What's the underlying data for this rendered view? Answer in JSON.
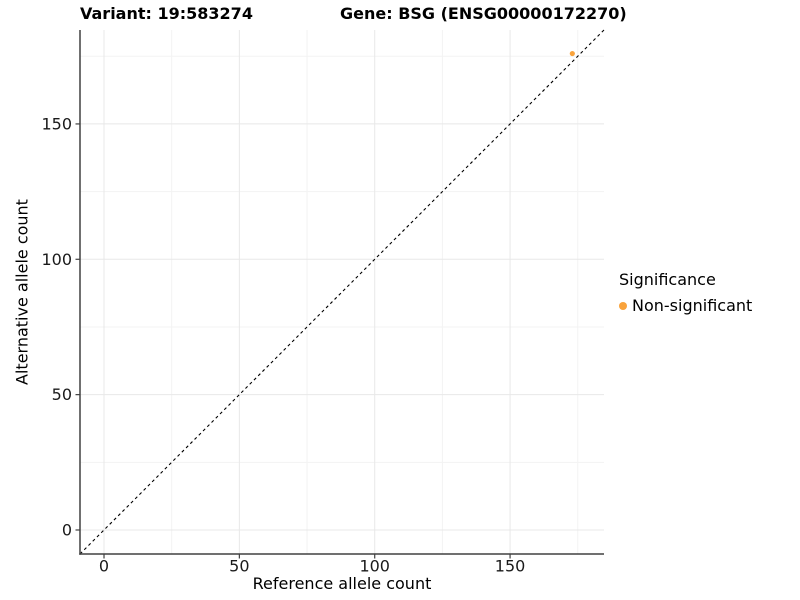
{
  "titles": {
    "variant": "Variant: 19:583274",
    "gene": "Gene: BSG (ENSG00000172270)"
  },
  "chart_data": {
    "type": "scatter",
    "xlabel": "Reference allele count",
    "ylabel": "Alternative allele count",
    "x_ticks": [
      0,
      50,
      100,
      150
    ],
    "y_ticks": [
      0,
      50,
      100,
      150
    ],
    "x_minor_breaks": [
      25,
      75,
      125,
      175
    ],
    "y_minor_breaks": [
      25,
      75,
      125,
      175
    ],
    "xlim": [
      -8.87,
      184.7
    ],
    "ylim": [
      -8.87,
      184.7
    ],
    "grid": true,
    "reference_line": {
      "style": "dashed",
      "slope": 1,
      "intercept": 0
    },
    "series": [
      {
        "name": "Non-significant",
        "points": [
          {
            "x": 173,
            "y": 176
          }
        ]
      }
    ],
    "legend": {
      "position": "right",
      "title": "Significance",
      "items": [
        {
          "label": "Non-significant",
          "color": "#F9A33C"
        }
      ]
    }
  },
  "colors": {
    "point": "#F9A33C",
    "axis": "#404040",
    "tick_text": "#1a1a1a",
    "grid_major": "#e8e8e8",
    "grid_minor": "#f3f3f3",
    "diagonal": "#000000"
  }
}
